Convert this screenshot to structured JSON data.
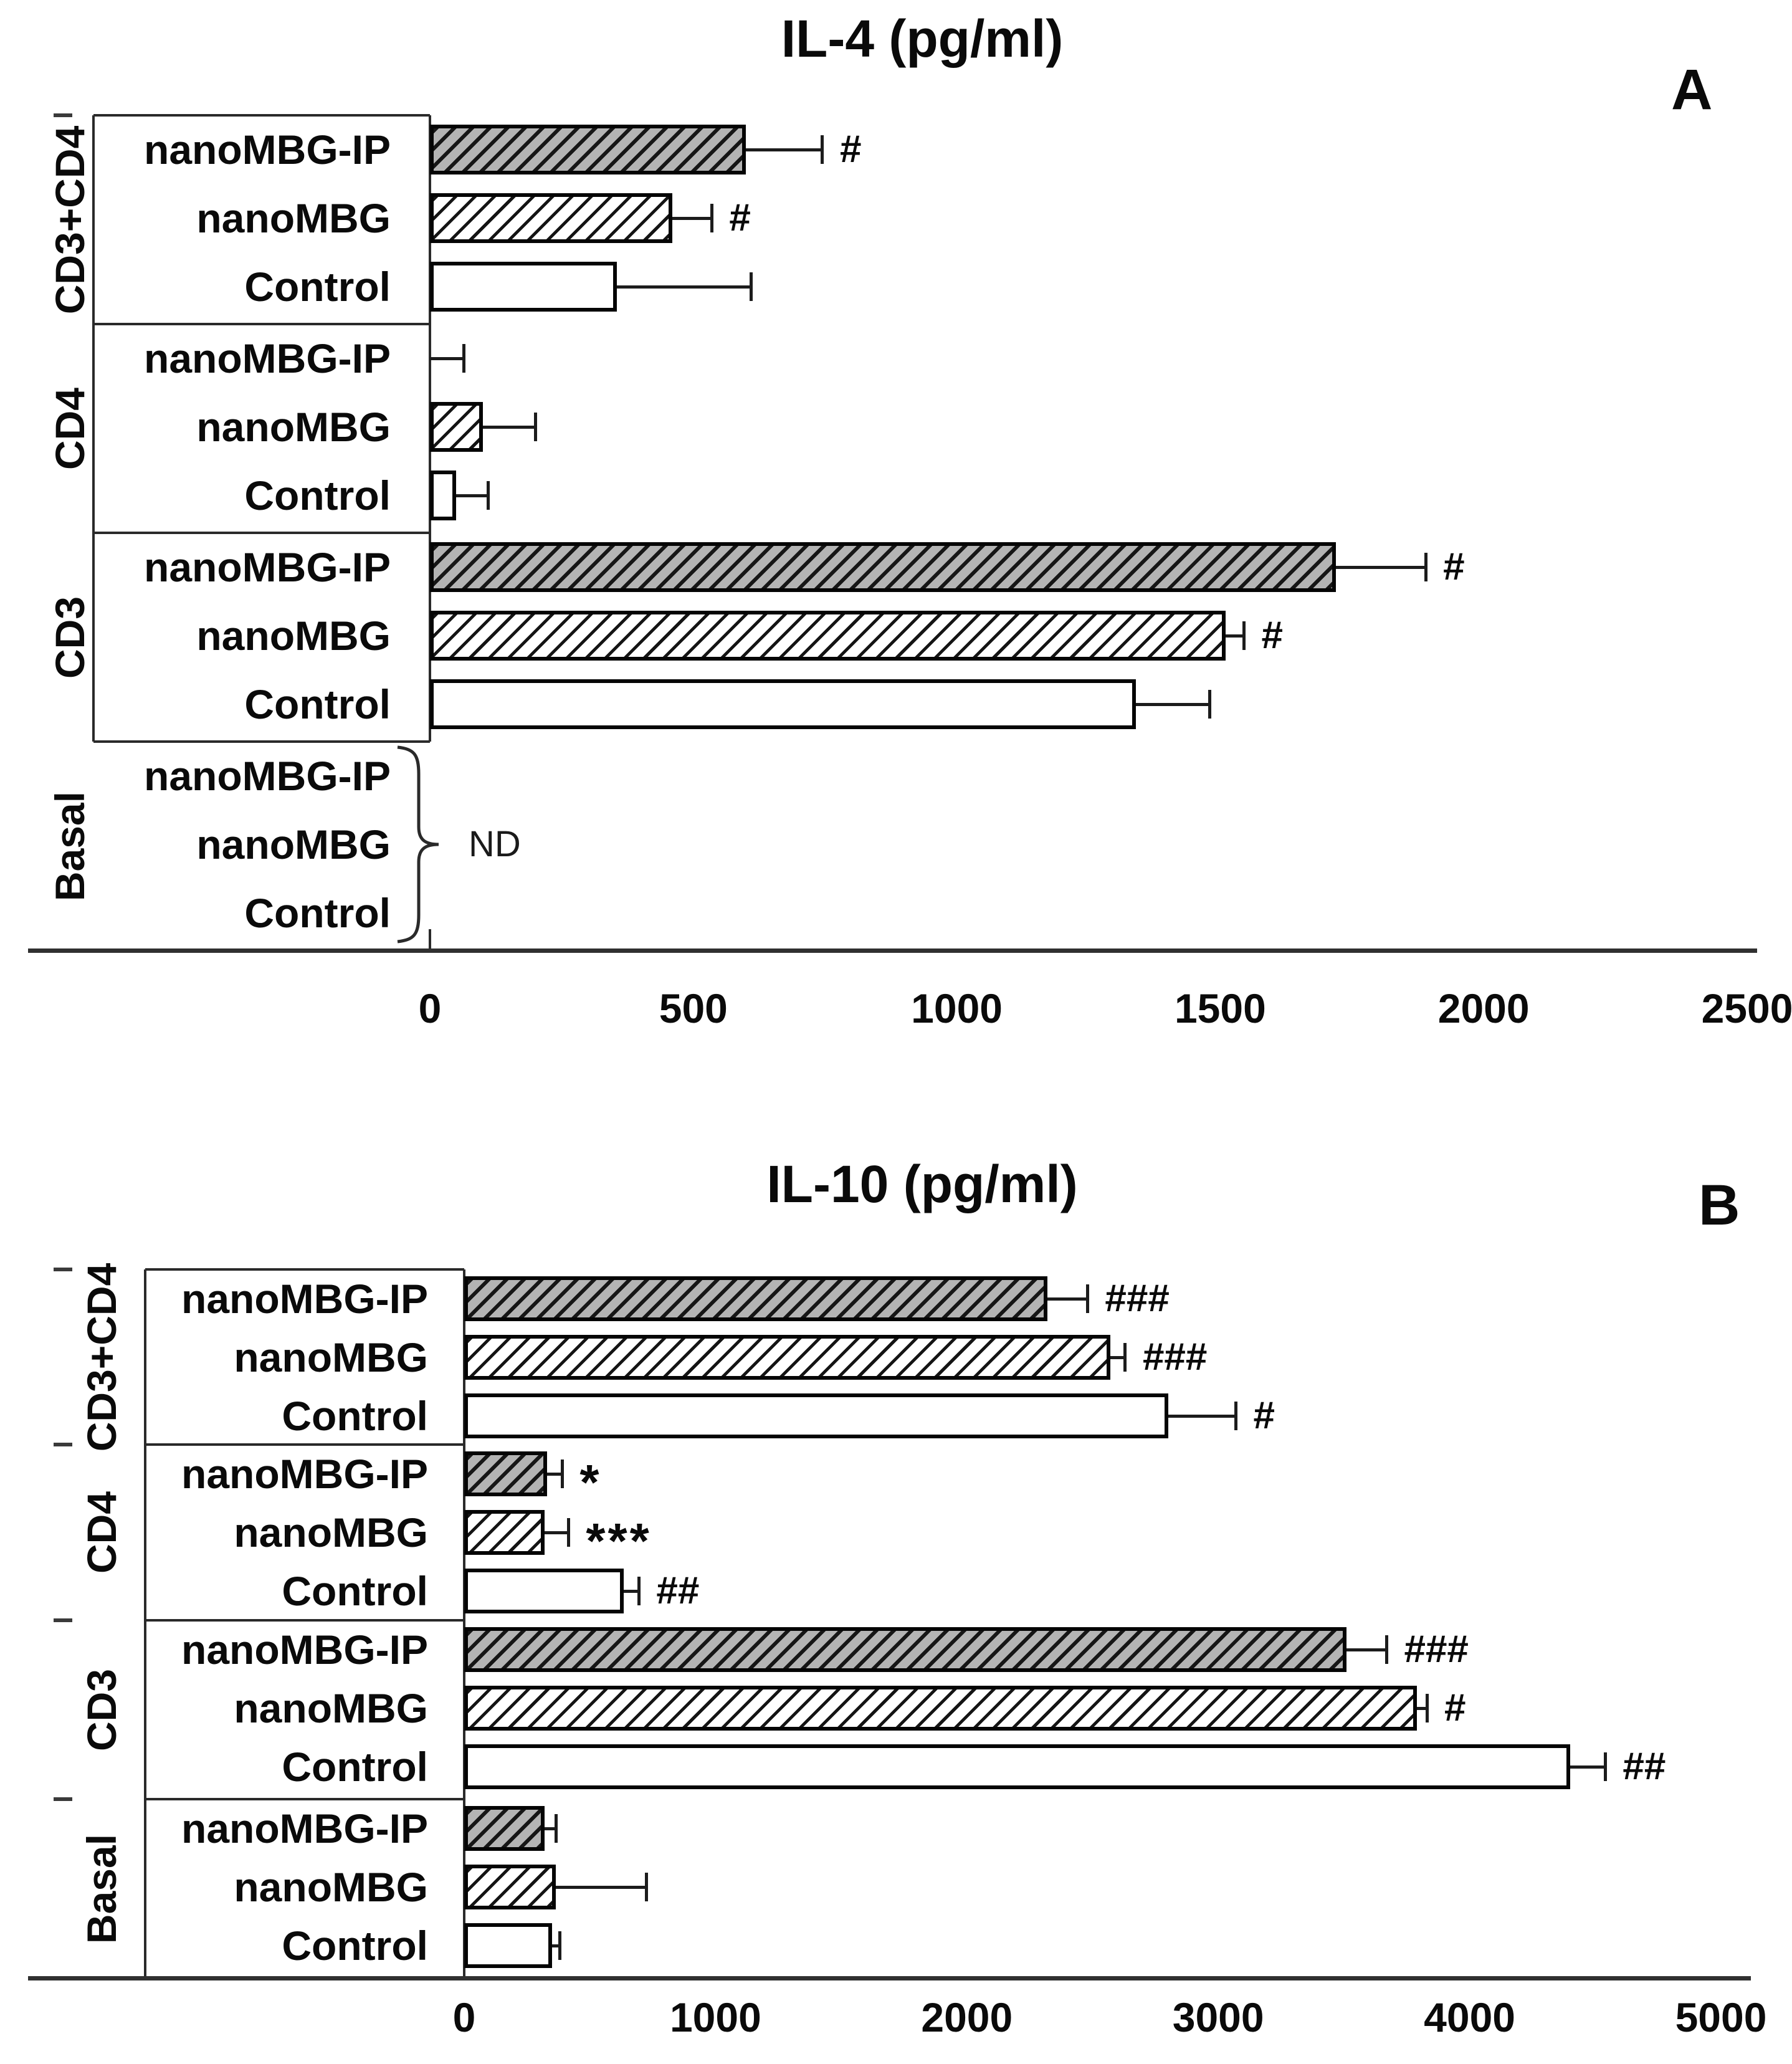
{
  "chart_data": [
    {
      "type": "bar",
      "orientation": "horizontal",
      "panel_letter": "A",
      "title": "IL-4 (pg/ml)",
      "xlim": [
        0,
        2500
      ],
      "xticks": [
        0,
        500,
        1000,
        1500,
        2000,
        2500
      ],
      "grid": false,
      "series_patterns": {
        "nanoMBG-IP": "dark-gray-diagonal-hatch",
        "nanoMBG": "white-diagonal-hatch",
        "Control": "solid-white"
      },
      "groups": [
        {
          "label": "CD3+CD4",
          "boxed": true,
          "rows": [
            {
              "label": "nanoMBG-IP",
              "value": 600,
              "error_to": 745,
              "annotation": "#"
            },
            {
              "label": "nanoMBG",
              "value": 460,
              "error_to": 535,
              "annotation": "#"
            },
            {
              "label": "Control",
              "value": 355,
              "error_to": 610,
              "annotation": ""
            }
          ]
        },
        {
          "label": "CD4",
          "boxed": true,
          "rows": [
            {
              "label": "nanoMBG-IP",
              "value": 0,
              "error_to": 65,
              "annotation": ""
            },
            {
              "label": "nanoMBG",
              "value": 100,
              "error_to": 200,
              "annotation": ""
            },
            {
              "label": "Control",
              "value": 50,
              "error_to": 110,
              "annotation": ""
            }
          ]
        },
        {
          "label": "CD3",
          "boxed": true,
          "rows": [
            {
              "label": "nanoMBG-IP",
              "value": 1720,
              "error_to": 1890,
              "annotation": "#"
            },
            {
              "label": "nanoMBG",
              "value": 1510,
              "error_to": 1545,
              "annotation": "#"
            },
            {
              "label": "Control",
              "value": 1340,
              "error_to": 1480,
              "annotation": ""
            }
          ]
        },
        {
          "label": "Basal",
          "boxed": false,
          "not_detected": true,
          "nd_label": "ND",
          "rows": [
            {
              "label": "nanoMBG-IP",
              "value": null,
              "error_to": null,
              "annotation": ""
            },
            {
              "label": "nanoMBG",
              "value": null,
              "error_to": null,
              "annotation": ""
            },
            {
              "label": "Control",
              "value": null,
              "error_to": null,
              "annotation": ""
            }
          ]
        }
      ]
    },
    {
      "type": "bar",
      "orientation": "horizontal",
      "panel_letter": "B",
      "title": "IL-10 (pg/ml)",
      "xlim": [
        0,
        5000
      ],
      "xticks": [
        0,
        1000,
        2000,
        3000,
        4000,
        5000
      ],
      "grid": false,
      "series_patterns": {
        "nanoMBG-IP": "dark-gray-diagonal-hatch",
        "nanoMBG": "white-diagonal-hatch",
        "Control": "solid-white"
      },
      "groups": [
        {
          "label": "CD3+CD4",
          "boxed": true,
          "rows": [
            {
              "label": "nanoMBG-IP",
              "value": 2320,
              "error_to": 2480,
              "annotation": "###"
            },
            {
              "label": "nanoMBG",
              "value": 2570,
              "error_to": 2630,
              "annotation": "###"
            },
            {
              "label": "Control",
              "value": 2800,
              "error_to": 3070,
              "annotation": "#"
            }
          ]
        },
        {
          "label": "CD4",
          "boxed": true,
          "rows": [
            {
              "label": "nanoMBG-IP",
              "value": 330,
              "error_to": 390,
              "annotation": "*"
            },
            {
              "label": "nanoMBG",
              "value": 320,
              "error_to": 415,
              "annotation": "***"
            },
            {
              "label": "Control",
              "value": 635,
              "error_to": 695,
              "annotation": "##"
            }
          ]
        },
        {
          "label": "CD3",
          "boxed": true,
          "rows": [
            {
              "label": "nanoMBG-IP",
              "value": 3510,
              "error_to": 3670,
              "annotation": "###"
            },
            {
              "label": "nanoMBG",
              "value": 3790,
              "error_to": 3830,
              "annotation": "#"
            },
            {
              "label": "Control",
              "value": 4400,
              "error_to": 4540,
              "annotation": "##"
            }
          ]
        },
        {
          "label": "Basal",
          "boxed": true,
          "rows": [
            {
              "label": "nanoMBG-IP",
              "value": 320,
              "error_to": 365,
              "annotation": ""
            },
            {
              "label": "nanoMBG",
              "value": 365,
              "error_to": 725,
              "annotation": ""
            },
            {
              "label": "Control",
              "value": 350,
              "error_to": 380,
              "annotation": ""
            }
          ]
        }
      ]
    }
  ]
}
